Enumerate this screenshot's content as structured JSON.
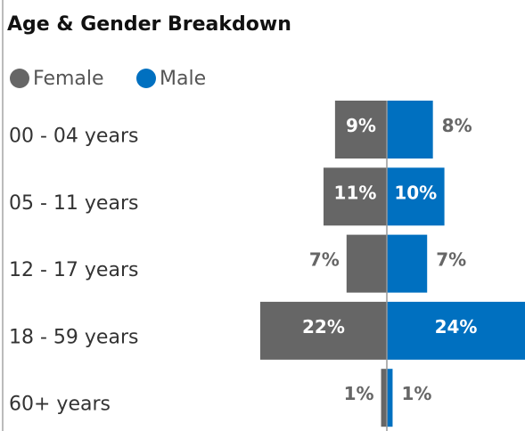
{
  "chart_data": {
    "type": "butterfly",
    "title": "Age & Gender Breakdown",
    "categories": [
      "00 - 04 years",
      "05 - 11 years",
      "12 - 17 years",
      "18 - 59 years",
      "60+ years"
    ],
    "series": [
      {
        "name": "Female",
        "color": "#666666",
        "values": [
          9,
          11,
          7,
          22,
          1
        ],
        "value_labels": [
          "9%",
          "11%",
          "7%",
          "22%",
          "1%"
        ]
      },
      {
        "name": "Male",
        "color": "#0070c0",
        "values": [
          8,
          10,
          7,
          24,
          1
        ],
        "value_labels": [
          "8%",
          "10%",
          "7%",
          "24%",
          "1%"
        ]
      }
    ]
  }
}
